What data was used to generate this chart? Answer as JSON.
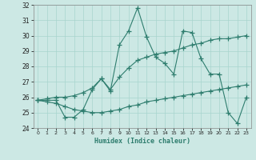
{
  "x": [
    0,
    1,
    2,
    3,
    4,
    5,
    6,
    7,
    8,
    9,
    10,
    11,
    12,
    13,
    14,
    15,
    16,
    17,
    18,
    19,
    20,
    21,
    22,
    23
  ],
  "y_main": [
    25.8,
    25.8,
    25.8,
    24.7,
    24.7,
    25.2,
    26.5,
    27.2,
    26.4,
    29.4,
    30.3,
    31.8,
    29.9,
    28.6,
    28.2,
    27.5,
    30.3,
    30.2,
    28.5,
    27.5,
    27.5,
    25.0,
    24.3,
    26.0
  ],
  "y_upper": [
    25.8,
    25.9,
    26.0,
    26.0,
    26.1,
    26.3,
    26.6,
    27.2,
    26.5,
    27.3,
    27.9,
    28.4,
    28.6,
    28.8,
    28.9,
    29.0,
    29.2,
    29.4,
    29.5,
    29.7,
    29.8,
    29.8,
    29.9,
    30.0
  ],
  "y_lower": [
    25.8,
    25.7,
    25.6,
    25.4,
    25.2,
    25.1,
    25.0,
    25.0,
    25.1,
    25.2,
    25.4,
    25.5,
    25.7,
    25.8,
    25.9,
    26.0,
    26.1,
    26.2,
    26.3,
    26.4,
    26.5,
    26.6,
    26.7,
    26.8
  ],
  "ylim": [
    24,
    32
  ],
  "xlim_min": -0.5,
  "xlim_max": 23.5,
  "yticks": [
    24,
    25,
    26,
    27,
    28,
    29,
    30,
    31,
    32
  ],
  "xticks": [
    0,
    1,
    2,
    3,
    4,
    5,
    6,
    7,
    8,
    9,
    10,
    11,
    12,
    13,
    14,
    15,
    16,
    17,
    18,
    19,
    20,
    21,
    22,
    23
  ],
  "xlabel": "Humidex (Indice chaleur)",
  "line_color": "#2e7d6e",
  "bg_color": "#cce8e4",
  "grid_color": "#a8d4ce"
}
